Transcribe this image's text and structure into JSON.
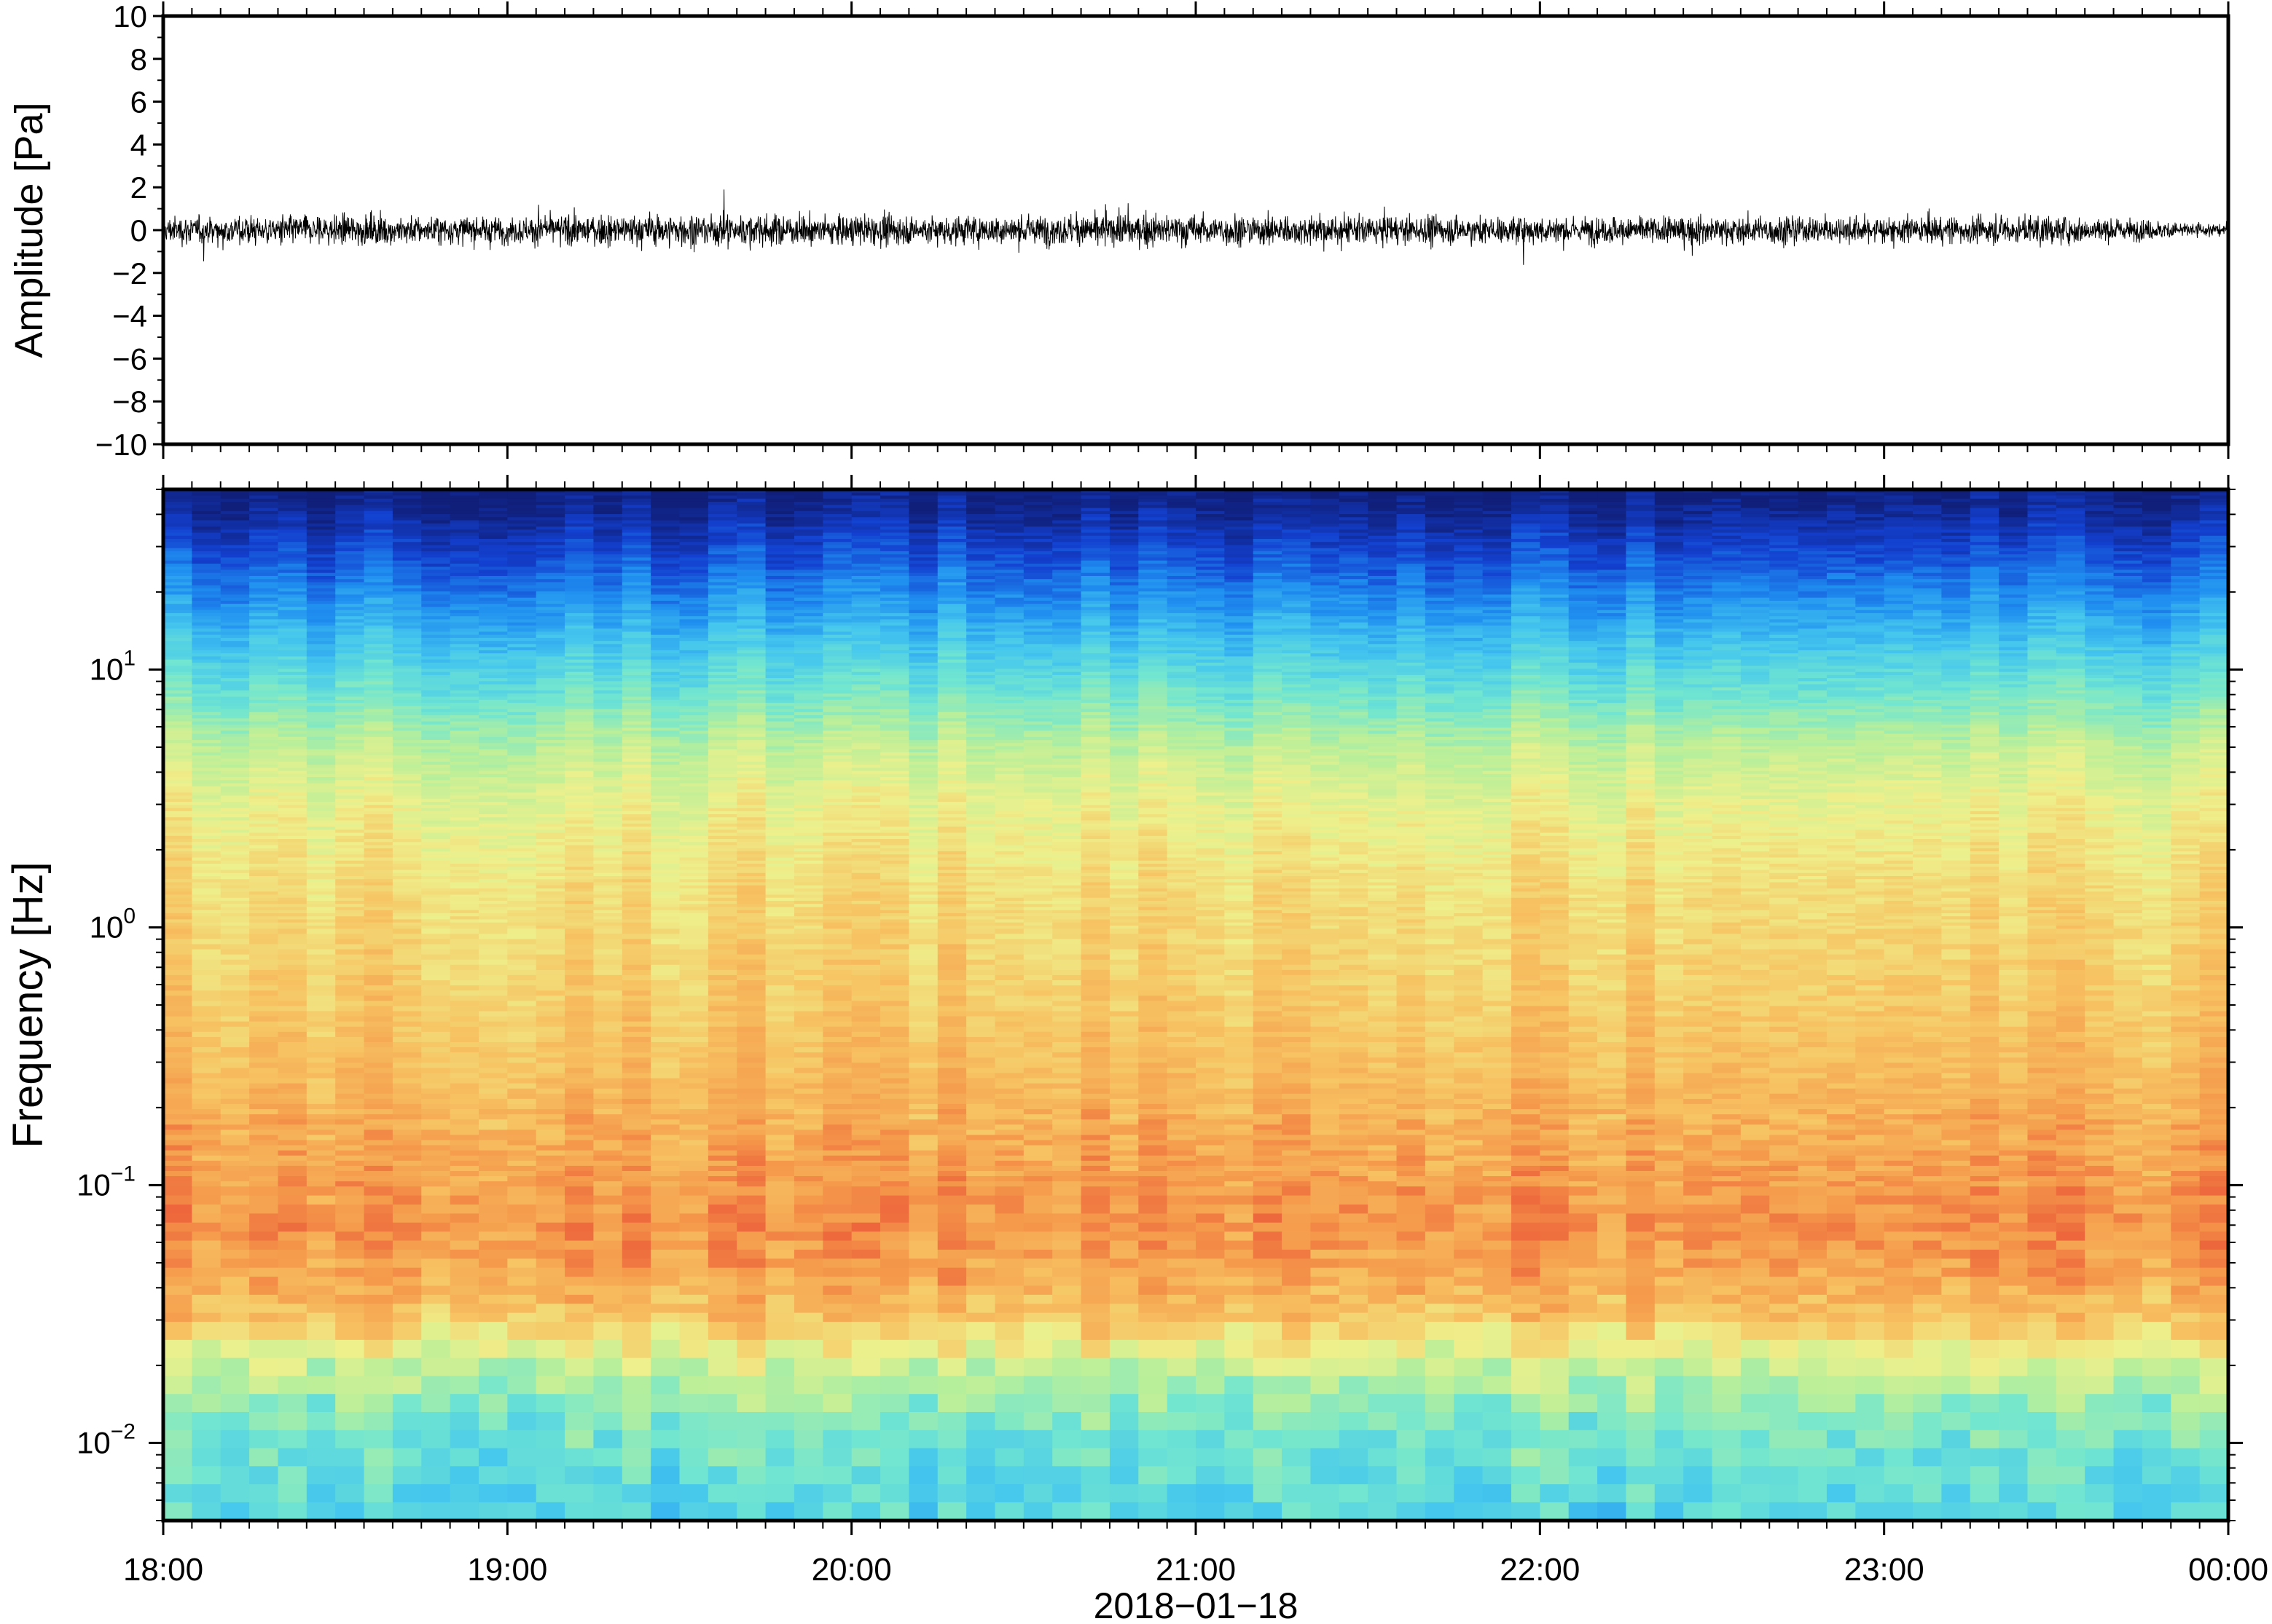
{
  "chart_data": [
    {
      "type": "line",
      "panel": "waveform",
      "ylabel": "Amplitude [Pa]",
      "xlabel": "",
      "ylim": [
        -10,
        10
      ],
      "yticks": [
        10,
        8,
        6,
        4,
        2,
        0,
        -2,
        -4,
        -6,
        -8,
        -10
      ],
      "ytick_labels": [
        "10",
        "8",
        "6",
        "4",
        "2",
        "0",
        "−2",
        "−4",
        "−6",
        "−8",
        "−10"
      ],
      "xlim": [
        "2018-01-18 18:00",
        "2018-01-19 00:00"
      ],
      "grid": false,
      "series": [
        {
          "color": "#000000",
          "x": [
            "18:00",
            "18:30",
            "19:00",
            "19:30",
            "20:00",
            "20:30",
            "21:00",
            "21:30",
            "22:00",
            "22:30",
            "23:00",
            "23:30",
            "00:00"
          ],
          "envelope_max": [
            1.2,
            1.4,
            1.2,
            1.5,
            1.3,
            1.4,
            1.5,
            1.3,
            1.2,
            1.3,
            1.2,
            1.3,
            0.6
          ],
          "envelope_min": [
            -1.3,
            -1.4,
            -1.3,
            -1.6,
            -1.4,
            -1.3,
            -1.5,
            -1.3,
            -1.3,
            -1.3,
            -1.3,
            -1.3,
            -0.6
          ],
          "peak_max": 2.2,
          "peak_min": -2.4
        }
      ]
    },
    {
      "type": "heatmap",
      "panel": "spectrogram",
      "ylabel": "Frequency [Hz]",
      "xlabel": "2018−01−18",
      "yscale": "log",
      "ylim": [
        0.005,
        50
      ],
      "yticks": [
        0.01,
        0.1,
        1,
        10
      ],
      "ytick_labels": [
        {
          "base": "10",
          "exp": "−2"
        },
        {
          "base": "10",
          "exp": "−1"
        },
        {
          "base": "10",
          "exp": "0"
        },
        {
          "base": "10",
          "exp": "1"
        }
      ],
      "xlim": [
        "2018-01-18 18:00",
        "2018-01-19 00:00"
      ],
      "xticks": [
        "18:00",
        "19:00",
        "20:00",
        "21:00",
        "22:00",
        "23:00",
        "00:00"
      ],
      "colormap": "jet",
      "colormap_stops": [
        "#101f7a",
        "#1340d0",
        "#1f8ef0",
        "#45c7ee",
        "#72e6d0",
        "#b9ef9a",
        "#eef08c",
        "#f7c463",
        "#f59a4b",
        "#ec5e3a"
      ],
      "description_profile": {
        "frequency_hz": [
          45,
          30,
          20,
          12,
          8,
          5,
          3,
          1.5,
          0.6,
          0.3,
          0.12,
          0.07,
          0.045,
          0.03,
          0.02,
          0.013,
          0.008,
          0.005
        ],
        "relative_level": [
          0.02,
          0.12,
          0.22,
          0.35,
          0.45,
          0.58,
          0.66,
          0.72,
          0.76,
          0.8,
          0.87,
          0.91,
          0.86,
          0.78,
          0.6,
          0.48,
          0.42,
          0.38
        ]
      }
    }
  ]
}
